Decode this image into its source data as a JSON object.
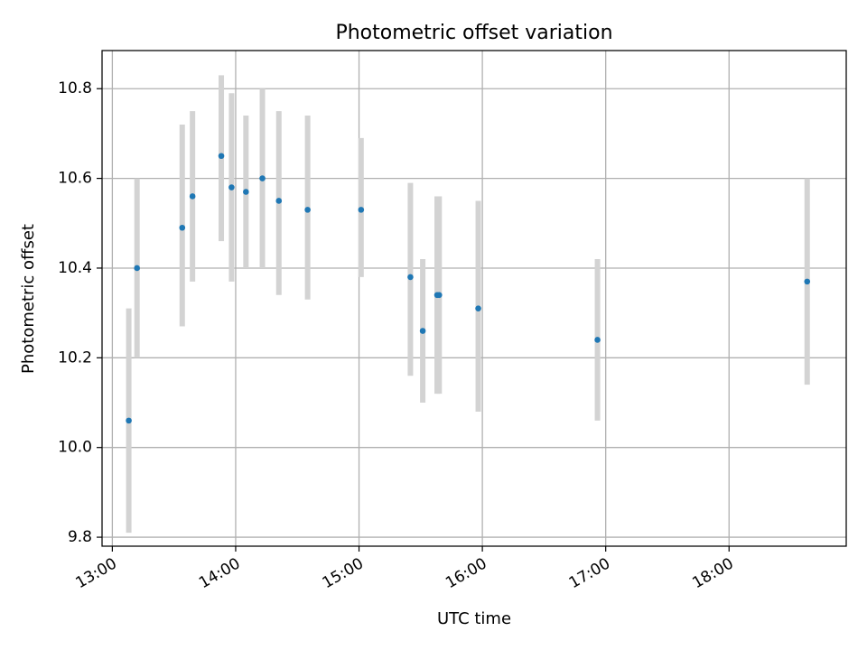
{
  "chart_data": {
    "type": "scatter",
    "title": "Photometric offset variation",
    "xlabel": "UTC time",
    "ylabel": "Photometric offset",
    "x_ticks": [
      "13:00",
      "14:00",
      "15:00",
      "16:00",
      "17:00",
      "18:00"
    ],
    "y_ticks": [
      "9.8",
      "10.0",
      "10.2",
      "10.4",
      "10.6",
      "10.8"
    ],
    "xlim": [
      "12:55",
      "18:57"
    ],
    "ylim": [
      9.78,
      10.885
    ],
    "grid": true,
    "colors": {
      "marker": "#1f77b4",
      "errorbar": "#d3d3d3",
      "grid": "#b0b0b0"
    },
    "points": [
      {
        "x": "13:08",
        "y": 10.06,
        "ylow": 9.81,
        "yhigh": 10.31
      },
      {
        "x": "13:12",
        "y": 10.4,
        "ylow": 10.2,
        "yhigh": 10.6
      },
      {
        "x": "13:34",
        "y": 10.49,
        "ylow": 10.27,
        "yhigh": 10.72
      },
      {
        "x": "13:39",
        "y": 10.56,
        "ylow": 10.37,
        "yhigh": 10.75
      },
      {
        "x": "13:53",
        "y": 10.65,
        "ylow": 10.46,
        "yhigh": 10.83
      },
      {
        "x": "13:58",
        "y": 10.58,
        "ylow": 10.37,
        "yhigh": 10.79
      },
      {
        "x": "14:05",
        "y": 10.57,
        "ylow": 10.4,
        "yhigh": 10.74
      },
      {
        "x": "14:13",
        "y": 10.6,
        "ylow": 10.4,
        "yhigh": 10.8
      },
      {
        "x": "14:21",
        "y": 10.55,
        "ylow": 10.34,
        "yhigh": 10.75
      },
      {
        "x": "14:35",
        "y": 10.53,
        "ylow": 10.33,
        "yhigh": 10.74
      },
      {
        "x": "15:01",
        "y": 10.53,
        "ylow": 10.38,
        "yhigh": 10.69
      },
      {
        "x": "15:25",
        "y": 10.38,
        "ylow": 10.16,
        "yhigh": 10.59
      },
      {
        "x": "15:31",
        "y": 10.26,
        "ylow": 10.1,
        "yhigh": 10.42
      },
      {
        "x": "15:38",
        "y": 10.34,
        "ylow": 10.12,
        "yhigh": 10.56
      },
      {
        "x": "15:39",
        "y": 10.34,
        "ylow": 10.12,
        "yhigh": 10.56
      },
      {
        "x": "15:58",
        "y": 10.31,
        "ylow": 10.08,
        "yhigh": 10.55
      },
      {
        "x": "16:56",
        "y": 10.24,
        "ylow": 10.06,
        "yhigh": 10.42
      },
      {
        "x": "18:38",
        "y": 10.37,
        "ylow": 10.14,
        "yhigh": 10.6
      }
    ]
  }
}
